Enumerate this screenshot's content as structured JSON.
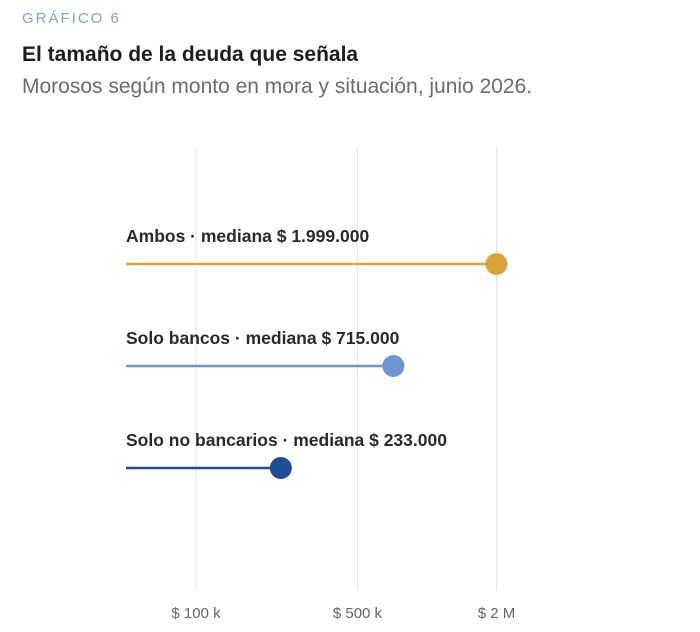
{
  "header": {
    "eyebrow": "GRÁFICO 6",
    "title": "El tamaño de la deuda que señala",
    "subtitle": "Morosos según monto en mora y situación, junio 2026."
  },
  "chart_data": {
    "type": "bar",
    "scale": "log",
    "grid": true,
    "xticks": [
      {
        "value": 100000,
        "label": "$ 100 k"
      },
      {
        "value": 500000,
        "label": "$ 500 k"
      },
      {
        "value": 2000000,
        "label": "$ 2 M"
      }
    ],
    "series": [
      {
        "label": "Ambos · mediana $ 1.999.000",
        "value": 1999000,
        "color": "#d9a43a"
      },
      {
        "label": "Solo bancos · mediana $ 715.000",
        "value": 715000,
        "color": "#6d94d3"
      },
      {
        "label": "Solo no bancarios · mediana $ 233.000",
        "value": 233000,
        "color": "#1f4d96"
      }
    ]
  }
}
